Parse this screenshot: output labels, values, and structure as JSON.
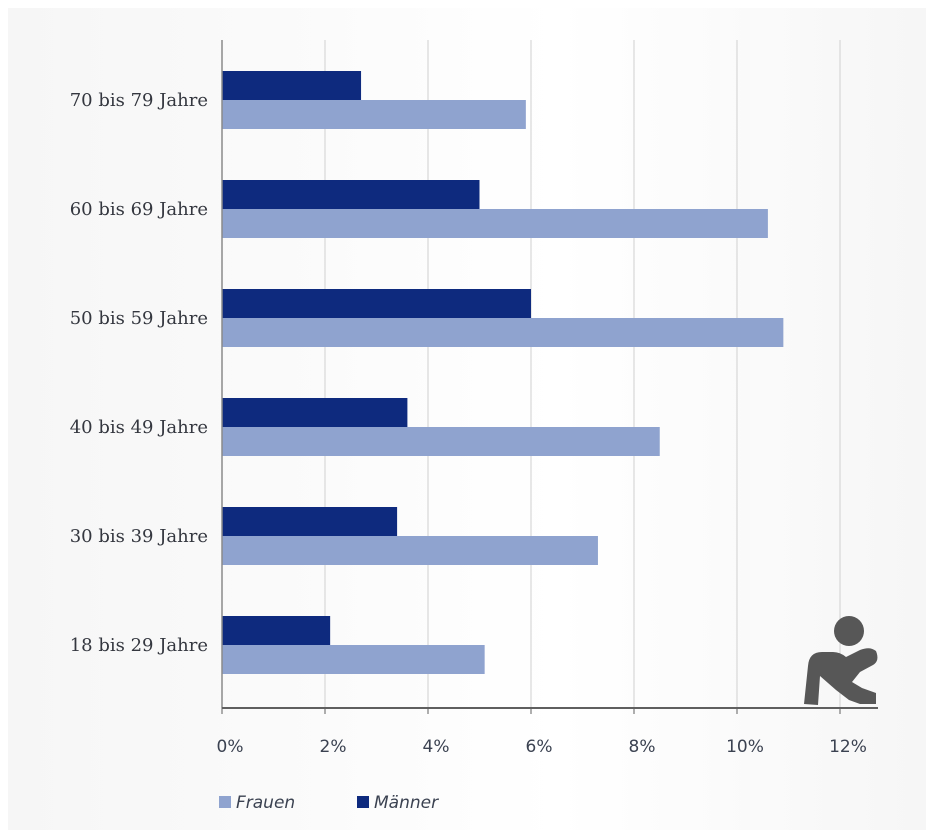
{
  "chart_data": {
    "type": "bar",
    "orientation": "horizontal",
    "categories": [
      "70 bis 79 Jahre",
      "60 bis 69 Jahre",
      "50 bis 59 Jahre",
      "40 bis 49 Jahre",
      "30 bis 39 Jahre",
      "18 bis 29 Jahre"
    ],
    "series": [
      {
        "name": "Männer",
        "values": [
          2.7,
          5.0,
          6.0,
          3.6,
          3.4,
          2.1
        ],
        "color": "#0e2a7e"
      },
      {
        "name": "Frauen",
        "values": [
          5.9,
          10.6,
          10.9,
          8.5,
          7.3,
          5.1
        ],
        "color": "#8fa3cf"
      }
    ],
    "xlim": [
      0,
      13
    ],
    "x_ticks": [
      0,
      2,
      4,
      6,
      8,
      10,
      12
    ],
    "x_tick_labels": [
      "0%",
      "2%",
      "4%",
      "6%",
      "8%",
      "10%",
      "12%"
    ],
    "legend": {
      "placement": "bottom-left",
      "entries": [
        {
          "label": "Frauen",
          "color": "#8fa3cf"
        },
        {
          "label": "Männer",
          "color": "#0e2a7e"
        }
      ]
    },
    "grid": true,
    "gridline_color": "#d0d0d0",
    "axis_color": "#5f5f5f",
    "icon": "depressed-person-icon"
  }
}
